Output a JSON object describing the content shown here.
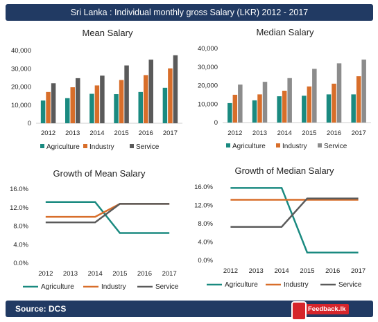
{
  "banner": {
    "title": "Sri Lanka : Individual monthly gross Salary (LKR) 2012 - 2017"
  },
  "footer": {
    "source": "Source: DCS",
    "logo_text": "Feedback.lk"
  },
  "colors": {
    "Agriculture": "#1a8a80",
    "Industry": "#d86e2a",
    "Service": "#5a5a5a",
    "Service_median": "#8c8c8c",
    "banner": "#213a63",
    "logo": "#d6252b"
  },
  "chart_data": [
    {
      "id": "mean",
      "type": "bar",
      "title": "Mean Salary",
      "categories": [
        "2012",
        "2013",
        "2014",
        "2015",
        "2016",
        "2017"
      ],
      "series": [
        {
          "name": "Agriculture",
          "values": [
            12500,
            13800,
            16200,
            16000,
            17200,
            19500
          ]
        },
        {
          "name": "Industry",
          "values": [
            17200,
            19800,
            20800,
            23800,
            26500,
            30200
          ]
        },
        {
          "name": "Service",
          "values": [
            22000,
            24800,
            26200,
            31800,
            35000,
            37400
          ]
        }
      ],
      "ylim": [
        0,
        40000
      ],
      "yticks": [
        "0",
        "10,000",
        "20,000",
        "30,000",
        "40,000"
      ]
    },
    {
      "id": "median",
      "type": "bar",
      "title": "Median Salary",
      "categories": [
        "2012",
        "2013",
        "2014",
        "2015",
        "2016",
        "2017"
      ],
      "series": [
        {
          "name": "Agriculture",
          "values": [
            10500,
            12000,
            14200,
            14500,
            15200,
            15200
          ]
        },
        {
          "name": "Industry",
          "values": [
            15000,
            15200,
            17200,
            19500,
            21000,
            25000
          ]
        },
        {
          "name": "Service",
          "values": [
            20500,
            22000,
            24000,
            29000,
            32000,
            34000
          ]
        }
      ],
      "ylim": [
        0,
        40000
      ],
      "yticks": [
        "0",
        "10,000",
        "20,000",
        "30,000",
        "40,000"
      ]
    },
    {
      "id": "mean_growth",
      "type": "line",
      "title": "Growth of Mean Salary",
      "categories": [
        "2012",
        "2013",
        "2014",
        "2015",
        "2016",
        "2017"
      ],
      "series": [
        {
          "name": "Agriculture",
          "values": [
            13.2,
            13.2,
            13.2,
            6.5,
            6.5,
            6.5
          ]
        },
        {
          "name": "Industry",
          "values": [
            10.0,
            10.0,
            10.0,
            12.8,
            12.8,
            12.8
          ]
        },
        {
          "name": "Service",
          "values": [
            8.8,
            8.8,
            8.8,
            12.8,
            12.8,
            12.8
          ]
        }
      ],
      "ylim": [
        0,
        16
      ],
      "yticks": [
        "0.0%",
        "4.0%",
        "8.0%",
        "12.0%",
        "16.0%"
      ]
    },
    {
      "id": "median_growth",
      "type": "line",
      "title": "Growth of Median Salary",
      "categories": [
        "2012",
        "2013",
        "2014",
        "2015",
        "2016",
        "2017"
      ],
      "series": [
        {
          "name": "Agriculture",
          "values": [
            15.8,
            15.8,
            15.8,
            1.7,
            1.7,
            1.7
          ]
        },
        {
          "name": "Industry",
          "values": [
            13.2,
            13.2,
            13.2,
            13.2,
            13.2,
            13.2
          ]
        },
        {
          "name": "Service",
          "values": [
            7.3,
            7.3,
            7.3,
            13.5,
            13.5,
            13.5
          ]
        }
      ],
      "ylim": [
        0,
        16
      ],
      "yticks": [
        "0.0%",
        "4.0%",
        "8.0%",
        "12.0%",
        "16.0%"
      ]
    }
  ]
}
